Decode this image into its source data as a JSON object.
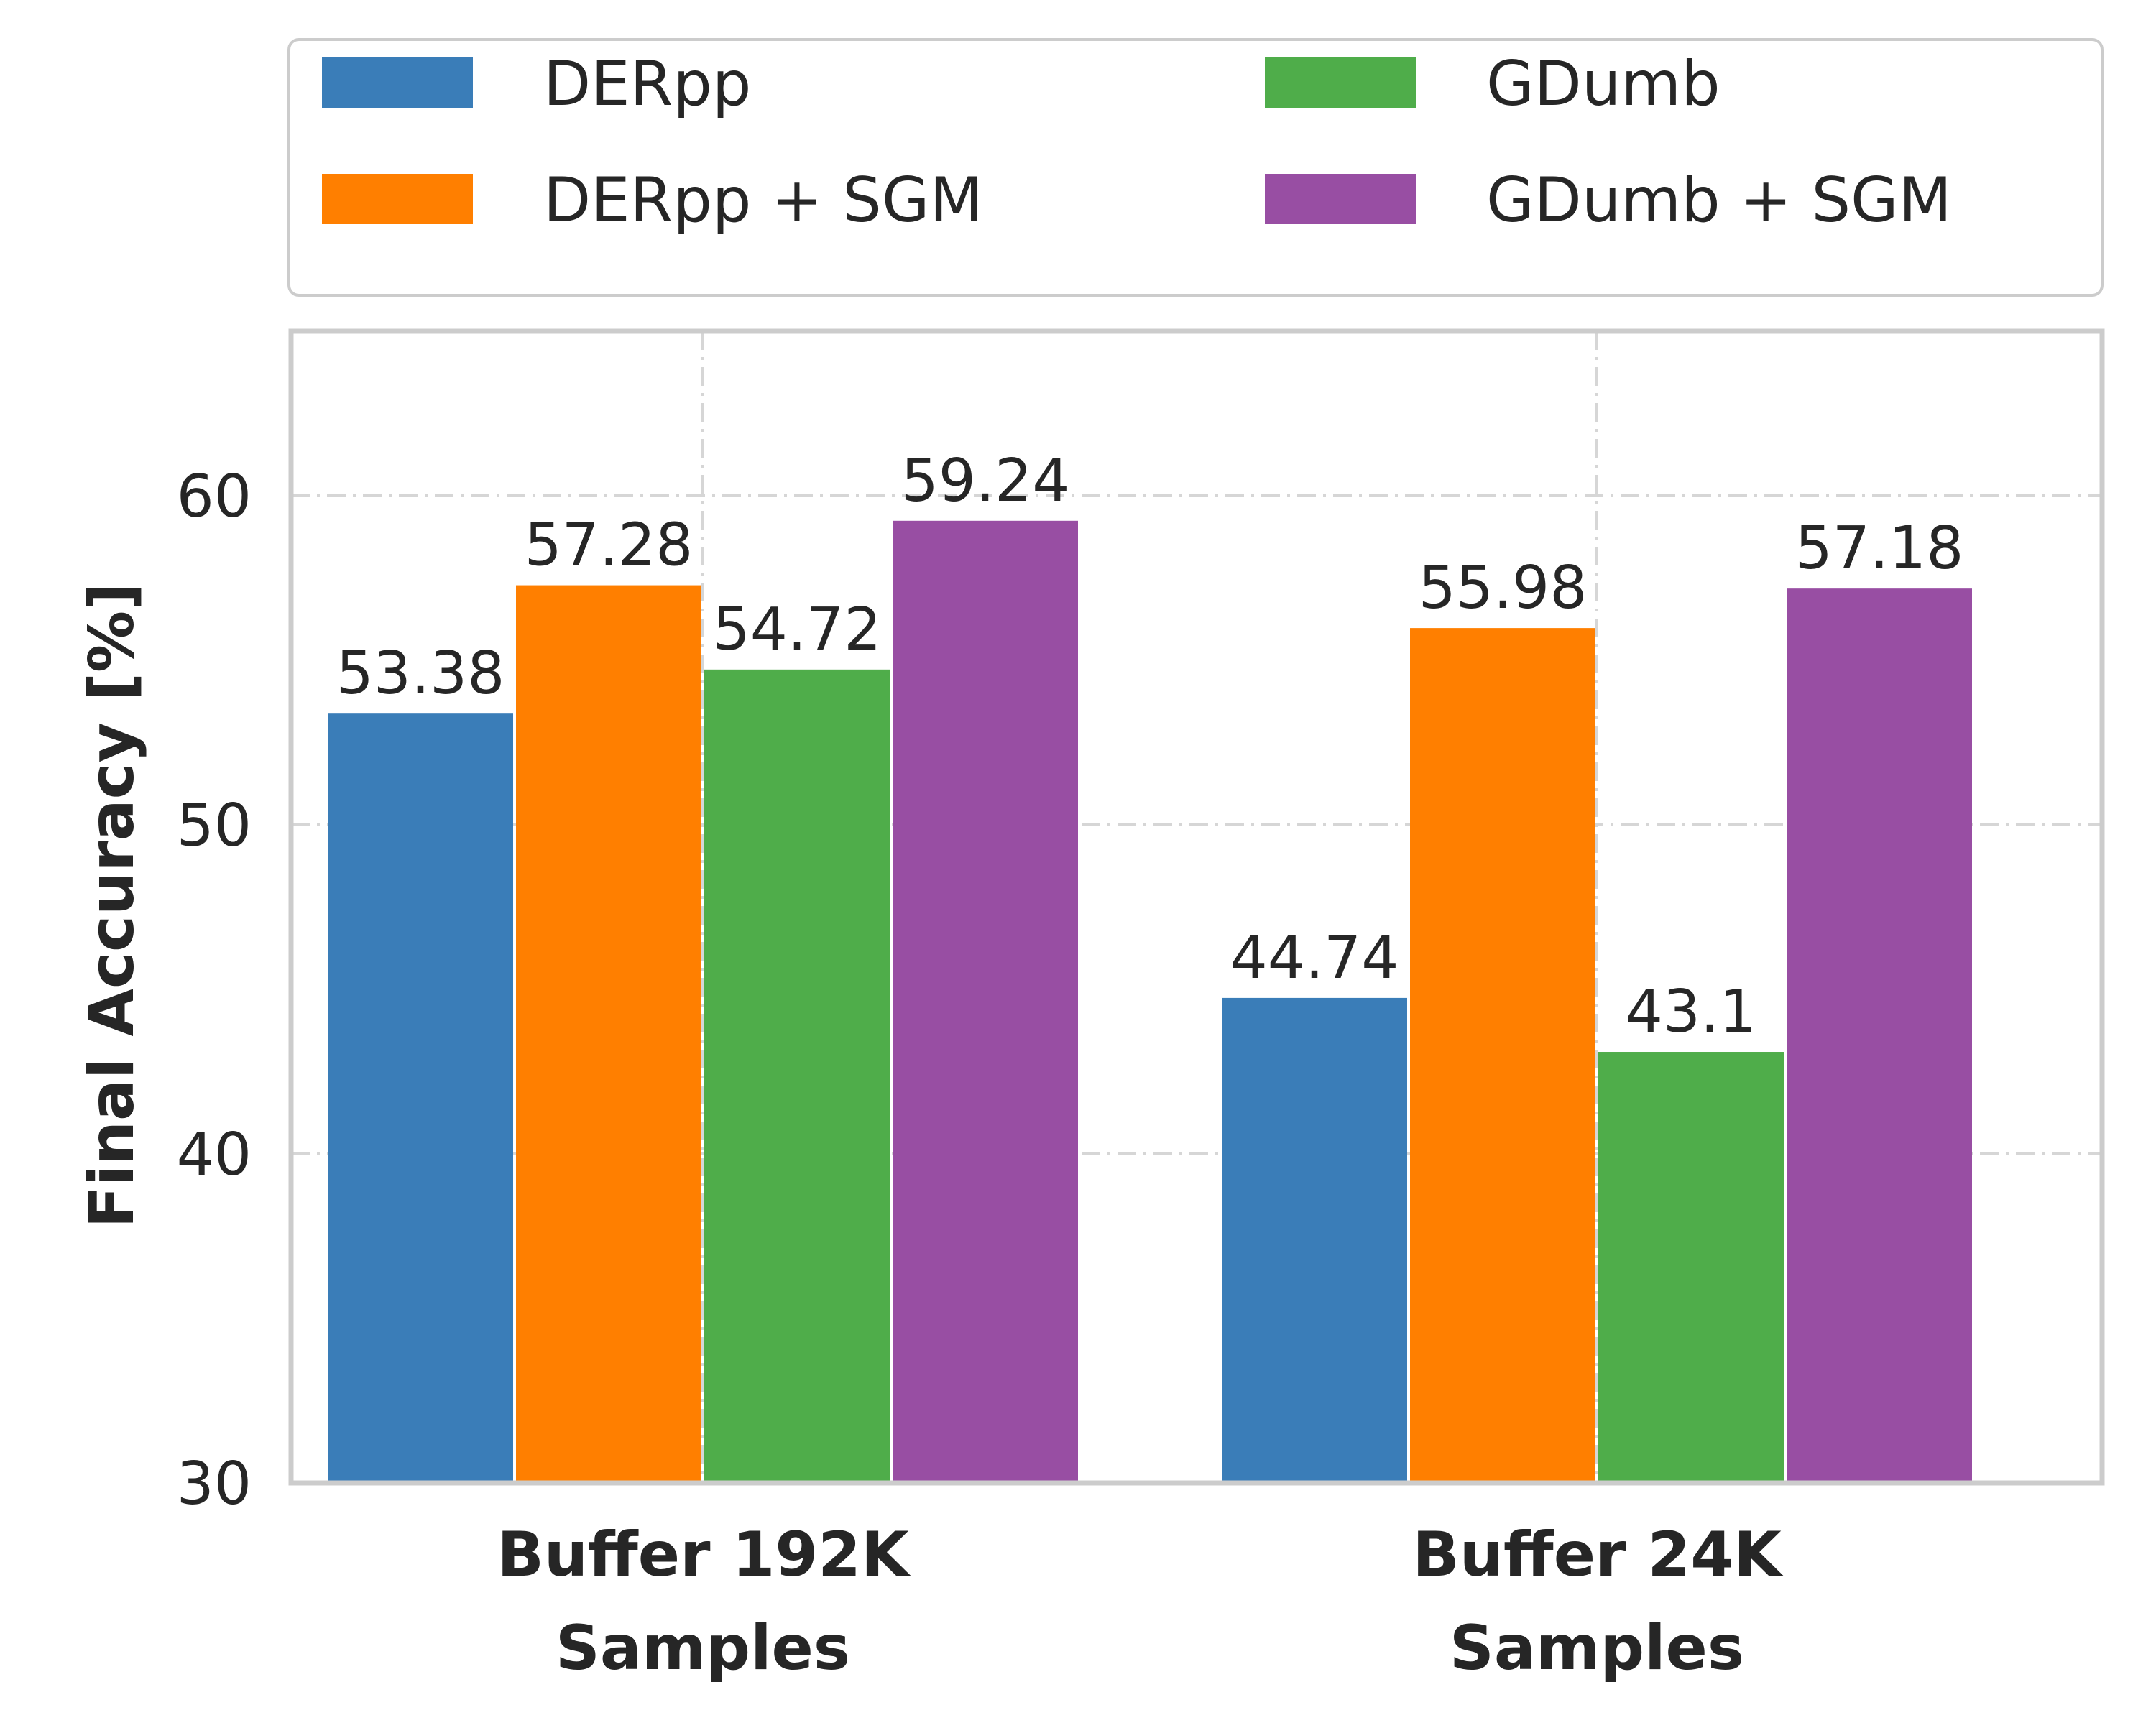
{
  "chart_data": {
    "type": "bar",
    "categories": [
      [
        "Buffer 192K",
        "Samples"
      ],
      [
        "Buffer 24K",
        "Samples"
      ]
    ],
    "series": [
      {
        "name": "DERpp",
        "color": "#3a7db8",
        "values": [
          53.38,
          44.74
        ],
        "labels": [
          "53.38",
          "44.74"
        ]
      },
      {
        "name": "DERpp + SGM",
        "color": "#ff7f00",
        "values": [
          57.28,
          55.98
        ],
        "labels": [
          "57.28",
          "55.98"
        ]
      },
      {
        "name": "GDumb",
        "color": "#4fad4a",
        "values": [
          54.72,
          43.1
        ],
        "labels": [
          "54.72",
          "43.1"
        ]
      },
      {
        "name": "GDumb + SGM",
        "color": "#984ea3",
        "values": [
          59.24,
          57.18
        ],
        "labels": [
          "59.24",
          "57.18"
        ]
      }
    ],
    "title": "",
    "xlabel": "",
    "ylabel": "Final Accuracy [%]",
    "ylim": [
      30,
      65
    ],
    "yticks": [
      30,
      40,
      50,
      60
    ],
    "grid": true,
    "legend_position": "top"
  }
}
